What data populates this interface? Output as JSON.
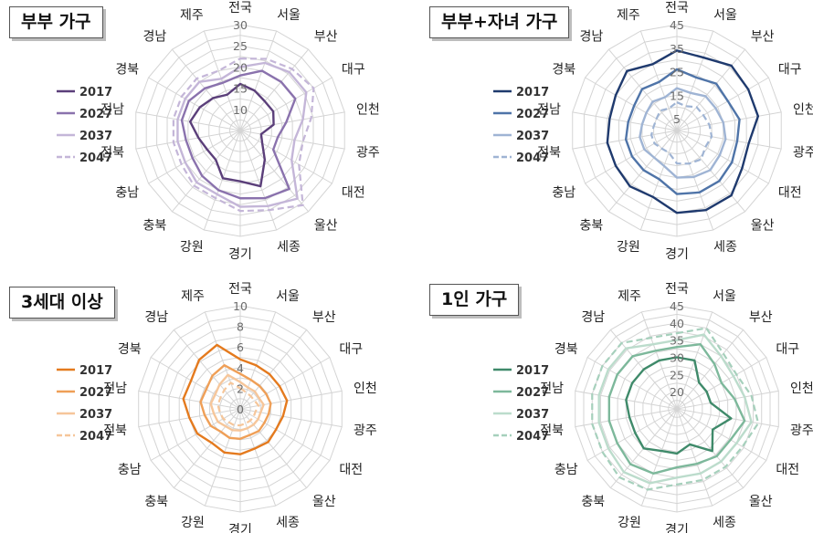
{
  "spoke_labels": [
    "전국",
    "서울",
    "부산",
    "대구",
    "인천",
    "광주",
    "대전",
    "울산",
    "세종",
    "경기",
    "강원",
    "충북",
    "충남",
    "전북",
    "전남",
    "경북",
    "경남",
    "제주"
  ],
  "chart_data": [
    {
      "type": "radar",
      "title": "부부 가구",
      "rlim": [
        5,
        30
      ],
      "rticks": [
        "10",
        "15",
        "20",
        "25",
        "30"
      ],
      "grid": true,
      "legend": "left",
      "series": [
        {
          "name": "2017",
          "color": "#5b3f7a",
          "dashed": false,
          "width": 2.4,
          "values": [
            16,
            15,
            14,
            14,
            13,
            10,
            11,
            14,
            19,
            17,
            17,
            14,
            14,
            15,
            17,
            16,
            15,
            14
          ]
        },
        {
          "name": "2027",
          "color": "#8a72ad",
          "dashed": false,
          "width": 2.4,
          "values": [
            18,
            20,
            20,
            20,
            16,
            14,
            14,
            23,
            22,
            21,
            20,
            19,
            18,
            18,
            19,
            19,
            18,
            17
          ]
        },
        {
          "name": "2037",
          "color": "#c4b6d8",
          "dashed": false,
          "width": 2.4,
          "values": [
            20,
            22,
            23,
            23,
            20,
            18,
            19,
            26,
            24,
            23,
            21,
            21,
            20,
            20,
            20,
            20,
            20,
            18
          ]
        },
        {
          "name": "2047",
          "color": "#c4b6d8",
          "dashed": true,
          "width": 2.2,
          "values": [
            22,
            23,
            24,
            25,
            22,
            20,
            21,
            28,
            25,
            24,
            22,
            22,
            21,
            21,
            21,
            21,
            21,
            20
          ]
        }
      ]
    },
    {
      "type": "radar",
      "title": "부부+자녀 가구",
      "rlim": [
        0,
        45
      ],
      "rticks": [
        "5",
        "15",
        "25",
        "35",
        "45"
      ],
      "grid": true,
      "legend": "left",
      "series": [
        {
          "name": "2017",
          "color": "#1f3a6e",
          "dashed": false,
          "width": 2.4,
          "values": [
            34,
            33,
            36,
            35,
            35,
            31,
            32,
            36,
            36,
            35,
            30,
            31,
            30,
            30,
            29,
            30,
            33,
            30
          ]
        },
        {
          "name": "2027",
          "color": "#4f74a8",
          "dashed": false,
          "width": 2.4,
          "values": [
            26,
            24,
            26,
            25,
            27,
            26,
            27,
            28,
            28,
            27,
            22,
            22,
            22,
            22,
            21,
            21,
            23,
            22
          ]
        },
        {
          "name": "2037",
          "color": "#9fb4d4",
          "dashed": false,
          "width": 2.4,
          "values": [
            18,
            17,
            19,
            19,
            20,
            21,
            21,
            22,
            21,
            20,
            16,
            15,
            16,
            16,
            15,
            15,
            16,
            15
          ]
        },
        {
          "name": "2047",
          "color": "#9fb4d4",
          "dashed": true,
          "width": 2.2,
          "values": [
            12,
            11,
            13,
            13,
            14,
            15,
            14,
            16,
            15,
            14,
            10,
            10,
            11,
            11,
            10,
            10,
            11,
            10
          ]
        }
      ]
    },
    {
      "type": "radar",
      "title": "3세대 이상",
      "rlim": [
        0,
        10
      ],
      "rticks": [
        "0",
        "2",
        "4",
        "6",
        "8",
        "10"
      ],
      "grid": true,
      "legend": "left",
      "series": [
        {
          "name": "2017",
          "color": "#e47a1e",
          "dashed": false,
          "width": 2.4,
          "values": [
            4.8,
            4.5,
            4.4,
            4.4,
            4.6,
            4.2,
            4.0,
            4.2,
            4.1,
            4.4,
            4.5,
            4.3,
            4.8,
            5.0,
            5.6,
            5.5,
            6.2,
            6.6
          ]
        },
        {
          "name": "2027",
          "color": "#ef9f57",
          "dashed": false,
          "width": 2.4,
          "values": [
            3.4,
            3.0,
            2.9,
            2.9,
            3.0,
            2.8,
            2.7,
            2.8,
            2.7,
            2.9,
            3.0,
            2.9,
            3.3,
            3.5,
            3.9,
            3.8,
            4.2,
            4.5
          ]
        },
        {
          "name": "2037",
          "color": "#f6c69a",
          "dashed": false,
          "width": 2.4,
          "values": [
            2.6,
            2.2,
            2.2,
            2.1,
            2.3,
            2.0,
            2.0,
            2.0,
            2.0,
            2.1,
            2.2,
            2.2,
            2.5,
            2.6,
            2.9,
            2.8,
            3.1,
            3.5
          ]
        },
        {
          "name": "2047",
          "color": "#f6c69a",
          "dashed": true,
          "width": 2.2,
          "values": [
            2.0,
            1.7,
            1.6,
            1.6,
            1.8,
            1.5,
            1.5,
            1.5,
            1.5,
            1.6,
            1.7,
            1.7,
            1.9,
            2.0,
            2.2,
            2.2,
            2.4,
            2.7
          ]
        }
      ]
    },
    {
      "type": "radar",
      "title": "1인 가구",
      "rlim": [
        15,
        45
      ],
      "rticks": [
        "20",
        "25",
        "30",
        "35",
        "40",
        "45"
      ],
      "grid": true,
      "legend": "left",
      "series": [
        {
          "name": "2017",
          "color": "#3f8a6a",
          "dashed": false,
          "width": 2.4,
          "values": [
            30,
            30,
            25,
            25,
            25,
            31,
            27,
            31,
            26,
            28,
            28,
            30,
            29,
            29,
            30,
            30,
            30,
            30
          ]
        },
        {
          "name": "2027",
          "color": "#7db89b",
          "dashed": false,
          "width": 2.4,
          "values": [
            33,
            35,
            32,
            30,
            32,
            35,
            33,
            33,
            32,
            32,
            35,
            36,
            35,
            35,
            35,
            35,
            35,
            33
          ]
        },
        {
          "name": "2037",
          "color": "#bcdccc",
          "dashed": false,
          "width": 2.4,
          "values": [
            35,
            38,
            35,
            34,
            35,
            37,
            35,
            35,
            35,
            35,
            38,
            39,
            38,
            38,
            38,
            38,
            38,
            35
          ]
        },
        {
          "name": "2047",
          "color": "#a6d0bc",
          "dashed": true,
          "width": 2.2,
          "values": [
            37,
            40,
            36,
            35,
            37,
            39,
            37,
            37,
            37,
            37,
            40,
            41,
            40,
            40,
            40,
            40,
            40,
            37
          ]
        }
      ]
    }
  ]
}
